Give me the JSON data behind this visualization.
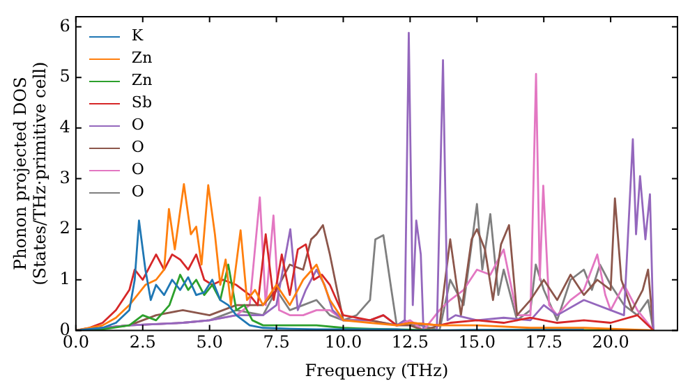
{
  "chart_data": {
    "type": "line",
    "xlabel": "Frequency (THz)",
    "ylabel": "Phonon projected DOS\n(States/THz·primitive cell)",
    "xlim": [
      0,
      22.5
    ],
    "ylim": [
      0,
      6.2
    ],
    "xticks": [
      {
        "value": 0,
        "label": "0.0"
      },
      {
        "value": 2.5,
        "label": "2.5"
      },
      {
        "value": 5,
        "label": "5.0"
      },
      {
        "value": 7.5,
        "label": "7.5"
      },
      {
        "value": 10,
        "label": "10.0"
      },
      {
        "value": 12.5,
        "label": "12.5"
      },
      {
        "value": 15,
        "label": "15.0"
      },
      {
        "value": 17.5,
        "label": "17.5"
      },
      {
        "value": 20,
        "label": "20.0"
      }
    ],
    "yticks": [
      0,
      1,
      2,
      3,
      4,
      5,
      6
    ],
    "grid": false,
    "legend": "top left",
    "marker": "none",
    "line_style": "solid",
    "series": [
      {
        "name": "K",
        "color": "#1f77b4",
        "x": [
          0,
          1,
          1.5,
          2,
          2.2,
          2.36,
          2.6,
          2.8,
          3.0,
          3.3,
          3.6,
          3.9,
          4.2,
          4.5,
          4.8,
          5.1,
          5.4,
          5.7,
          6.0,
          6.5,
          7.0,
          8,
          9,
          10,
          11,
          12,
          12.5,
          13.6,
          15,
          17,
          19
        ],
        "values": [
          0,
          0.05,
          0.15,
          0.4,
          1.0,
          2.17,
          1.2,
          0.6,
          0.9,
          0.7,
          1.0,
          0.8,
          1.05,
          0.7,
          0.75,
          1.0,
          0.6,
          0.5,
          0.3,
          0.1,
          0.05,
          0.03,
          0.02,
          0.02,
          0.02,
          0.02,
          0,
          0,
          0.01,
          0.01,
          0.01
        ]
      },
      {
        "name": "Zn",
        "color": "#ff7f0e",
        "x": [
          0,
          1,
          1.5,
          2,
          2.3,
          2.6,
          3.0,
          3.3,
          3.48,
          3.7,
          4.04,
          4.3,
          4.5,
          4.7,
          4.95,
          5.2,
          5.4,
          5.6,
          5.8,
          6.16,
          6.4,
          6.7,
          7.0,
          7.5,
          8,
          8.5,
          9,
          9.5,
          10,
          11,
          12,
          12.5,
          13.6,
          15,
          17,
          19,
          21.6
        ],
        "values": [
          0,
          0.1,
          0.25,
          0.5,
          0.7,
          0.9,
          1.0,
          1.2,
          2.4,
          1.6,
          2.89,
          1.9,
          2.05,
          1.3,
          2.87,
          1.9,
          0.9,
          1.4,
          0.5,
          1.98,
          0.6,
          0.8,
          0.5,
          0.9,
          0.5,
          1.0,
          1.3,
          0.6,
          0.2,
          0.15,
          0.1,
          0.15,
          0.1,
          0.1,
          0.05,
          0.05,
          0
        ]
      },
      {
        "name": "Zn",
        "color": "#2ca02c",
        "x": [
          0,
          1,
          2,
          2.5,
          3,
          3.5,
          3.9,
          4.2,
          4.5,
          4.8,
          5.1,
          5.4,
          5.7,
          6.0,
          6.3,
          6.6,
          7,
          8,
          9,
          10,
          11,
          12,
          13.6,
          17,
          21.6
        ],
        "values": [
          0,
          0.02,
          0.1,
          0.3,
          0.2,
          0.5,
          1.1,
          0.8,
          1.0,
          0.7,
          0.9,
          0.6,
          1.3,
          0.4,
          0.5,
          0.2,
          0.1,
          0.1,
          0.1,
          0.05,
          0.03,
          0.02,
          0,
          0.01,
          0
        ]
      },
      {
        "name": "Sb",
        "color": "#d62728",
        "x": [
          0,
          0.5,
          1,
          1.5,
          2,
          2.2,
          2.5,
          2.8,
          3.0,
          3.3,
          3.6,
          3.9,
          4.2,
          4.5,
          4.8,
          5.1,
          5.5,
          6.0,
          6.5,
          6.8,
          7.1,
          7.4,
          7.7,
          8.0,
          8.3,
          8.6,
          8.9,
          9.2,
          9.5,
          10,
          11,
          11.5,
          12,
          12.5,
          13.6,
          14,
          15,
          16,
          17,
          18,
          19,
          20,
          21,
          21.6
        ],
        "values": [
          0,
          0.05,
          0.15,
          0.4,
          0.8,
          1.2,
          1.0,
          1.3,
          1.5,
          1.2,
          1.5,
          1.4,
          1.2,
          1.5,
          1.0,
          0.9,
          1.0,
          0.9,
          0.7,
          0.5,
          1.9,
          0.6,
          1.5,
          0.7,
          1.6,
          1.7,
          1.0,
          1.1,
          0.9,
          0.3,
          0.2,
          0.3,
          0.1,
          0.15,
          0.1,
          0.15,
          0.2,
          0.15,
          0.25,
          0.15,
          0.2,
          0.15,
          0.3,
          0
        ]
      },
      {
        "name": "O",
        "color": "#9467bd",
        "x": [
          0,
          2,
          4,
          5,
          6,
          7,
          7.5,
          8.02,
          8.3,
          8.6,
          9,
          9.3,
          9.6,
          10,
          11,
          11.5,
          12,
          12.3,
          12.45,
          12.6,
          12.73,
          12.9,
          13,
          13.5,
          13.73,
          13.9,
          14.2,
          15,
          16,
          17,
          17.5,
          18,
          19,
          20,
          20.5,
          20.83,
          20.95,
          21.1,
          21.3,
          21.47,
          21.6
        ],
        "values": [
          0,
          0.1,
          0.15,
          0.2,
          0.3,
          0.3,
          0.5,
          2.0,
          0.4,
          0.8,
          1.2,
          0.9,
          0.4,
          0.2,
          0.2,
          0.3,
          0.1,
          0.2,
          5.88,
          0.5,
          2.17,
          1.5,
          0,
          0,
          5.34,
          0.2,
          0.3,
          0.2,
          0.25,
          0.2,
          0.5,
          0.3,
          0.6,
          0.4,
          0.3,
          3.78,
          1.9,
          3.05,
          1.8,
          2.69,
          0
        ]
      },
      {
        "name": "O",
        "color": "#8c564b",
        "x": [
          0,
          2,
          3,
          4,
          5,
          6,
          7,
          7.5,
          8,
          8.5,
          8.8,
          9.0,
          9.24,
          9.5,
          10,
          11,
          12,
          12.5,
          13,
          13.6,
          14,
          14.4,
          14.8,
          15,
          15.3,
          15.6,
          15.9,
          16.2,
          16.5,
          17,
          17.5,
          18,
          18.5,
          19,
          19.5,
          20,
          20.16,
          20.4,
          20.8,
          21.2,
          21.4,
          21.6
        ],
        "values": [
          0,
          0.1,
          0.3,
          0.4,
          0.3,
          0.5,
          0.5,
          0.8,
          1.3,
          1.2,
          1.8,
          1.9,
          2.08,
          1.5,
          0.2,
          0.2,
          0.1,
          0.1,
          0,
          0.1,
          1.8,
          0.3,
          1.8,
          2.0,
          1.6,
          0.6,
          1.7,
          2.08,
          0.3,
          0.6,
          1.0,
          0.6,
          1.1,
          0.7,
          1.0,
          0.8,
          2.61,
          1.0,
          0.4,
          0.8,
          1.2,
          0
        ]
      },
      {
        "name": "O",
        "color": "#e377c2",
        "x": [
          0,
          2,
          4,
          5,
          6,
          6.5,
          6.88,
          7.1,
          7.39,
          7.6,
          8,
          8.5,
          9,
          9.5,
          10,
          11,
          12,
          12.5,
          13,
          13.6,
          14,
          14.5,
          15,
          15.5,
          16,
          16.5,
          17,
          17.21,
          17.35,
          17.48,
          17.7,
          18,
          18.5,
          19,
          19.5,
          19.8,
          20,
          20.5,
          21,
          21.6
        ],
        "values": [
          0,
          0.1,
          0.15,
          0.2,
          0.3,
          0.5,
          2.63,
          0.5,
          2.27,
          0.4,
          0.3,
          0.3,
          0.4,
          0.4,
          0.2,
          0.2,
          0.1,
          0.2,
          0,
          0.4,
          0.6,
          0.8,
          1.2,
          1.1,
          1.6,
          0.3,
          0.3,
          5.07,
          1.0,
          2.86,
          0.5,
          0.3,
          0.6,
          0.8,
          1.5,
          0.7,
          0.4,
          0.9,
          0.4,
          0
        ]
      },
      {
        "name": "O",
        "color": "#7f7f7f",
        "x": [
          0,
          2,
          4,
          5,
          6,
          7,
          7.5,
          8,
          8.5,
          9,
          9.5,
          10,
          10.5,
          11,
          11.2,
          11.5,
          11.8,
          12,
          12.3,
          12.6,
          12.9,
          13.6,
          14,
          14.5,
          15.0,
          15.2,
          15.5,
          15.8,
          16,
          16.5,
          17,
          17.2,
          17.5,
          18,
          18.5,
          19,
          19.3,
          19.6,
          20,
          20.5,
          21,
          21.4,
          21.6
        ],
        "values": [
          0,
          0.1,
          0.15,
          0.2,
          0.4,
          0.3,
          0.8,
          0.4,
          0.5,
          0.6,
          0.3,
          0.2,
          0.3,
          0.6,
          1.8,
          1.88,
          0.8,
          0.1,
          0.2,
          0.1,
          0.1,
          0,
          1.0,
          0.5,
          2.5,
          1.2,
          2.3,
          0.7,
          1.2,
          0.2,
          0.4,
          1.3,
          0.8,
          0.2,
          1.0,
          1.2,
          0.8,
          1.3,
          0.9,
          0.5,
          0.3,
          0.6,
          0
        ]
      }
    ]
  }
}
